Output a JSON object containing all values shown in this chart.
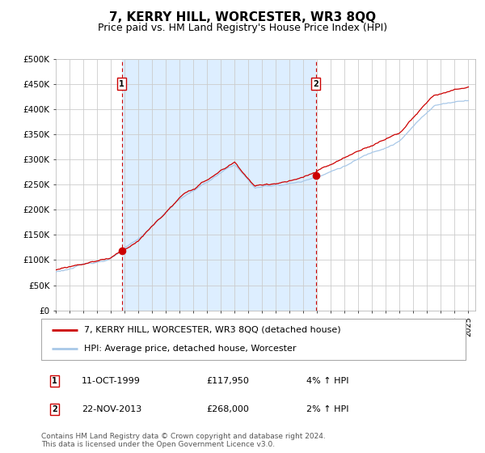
{
  "title": "7, KERRY HILL, WORCESTER, WR3 8QQ",
  "subtitle": "Price paid vs. HM Land Registry's House Price Index (HPI)",
  "ylabel_ticks": [
    "£0",
    "£50K",
    "£100K",
    "£150K",
    "£200K",
    "£250K",
    "£300K",
    "£350K",
    "£400K",
    "£450K",
    "£500K"
  ],
  "ytick_values": [
    0,
    50000,
    100000,
    150000,
    200000,
    250000,
    300000,
    350000,
    400000,
    450000,
    500000
  ],
  "ylim": [
    0,
    500000
  ],
  "xlim_start": 1995.0,
  "xlim_end": 2025.5,
  "sale1_date": 1999.79,
  "sale1_price": 117950,
  "sale2_date": 2013.9,
  "sale2_price": 268000,
  "hpi_line_color": "#a8c8e8",
  "price_line_color": "#cc0000",
  "sale_dot_color": "#cc0000",
  "dashed_vline_color": "#cc0000",
  "bg_fill_color": "#ddeeff",
  "grid_color": "#cccccc",
  "legend1_label": "7, KERRY HILL, WORCESTER, WR3 8QQ (detached house)",
  "legend2_label": "HPI: Average price, detached house, Worcester",
  "footer": "Contains HM Land Registry data © Crown copyright and database right 2024.\nThis data is licensed under the Open Government Licence v3.0.",
  "title_fontsize": 11,
  "subtitle_fontsize": 9,
  "tick_fontsize": 7.5,
  "legend_fontsize": 8,
  "footer_fontsize": 6.5
}
